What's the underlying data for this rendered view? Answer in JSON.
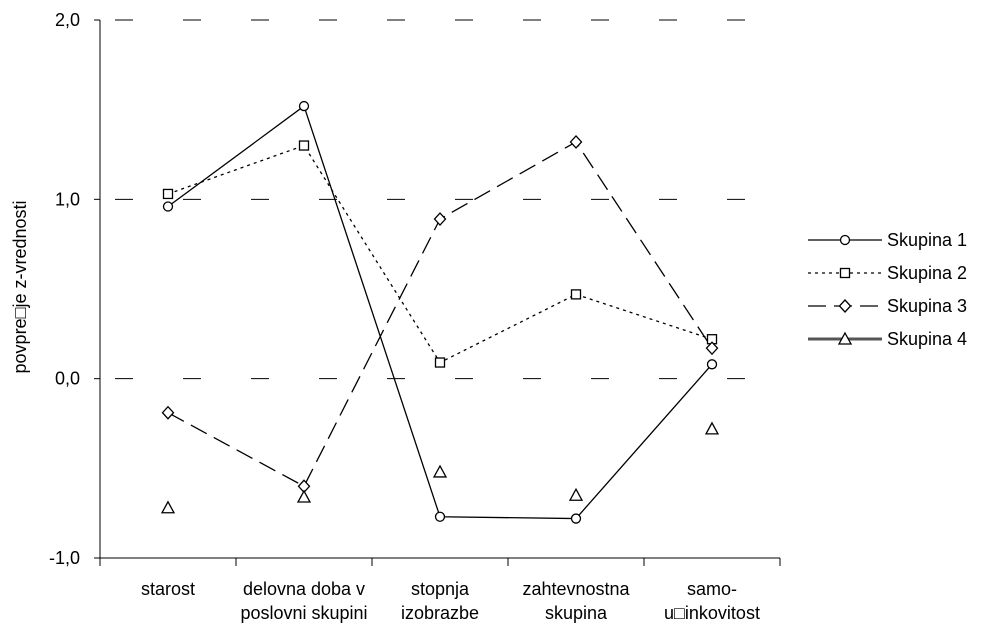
{
  "chart_data": {
    "type": "line",
    "title": "",
    "ylabel": "povpre□je z-vrednosti",
    "xlabel": "",
    "ylim": [
      -1.0,
      2.0
    ],
    "yticks": [
      "2,0",
      "1,0",
      "0,0",
      "-1,0"
    ],
    "ytick_values": [
      2.0,
      1.0,
      0.0,
      -1.0
    ],
    "grid": "dashed horizontal",
    "legend_position": "right",
    "categories": [
      [
        "starost"
      ],
      [
        "delovna doba v",
        "poslovni skupini"
      ],
      [
        "stopnja",
        "izobrazbe"
      ],
      [
        "zahtevnostna",
        "skupina"
      ],
      [
        "samo-",
        "u□inkovitost"
      ]
    ],
    "series": [
      {
        "name": "Skupina 1",
        "marker": "circle",
        "line": "solid",
        "color": "#000000",
        "values": [
          0.96,
          1.52,
          -0.77,
          -0.78,
          0.08
        ]
      },
      {
        "name": "Skupina 2",
        "marker": "square",
        "line": "dotted",
        "color": "#000000",
        "values": [
          1.03,
          1.3,
          0.09,
          0.47,
          0.22
        ]
      },
      {
        "name": "Skupina 3",
        "marker": "diamond",
        "line": "dashed",
        "color": "#000000",
        "values": [
          -0.19,
          -0.6,
          0.89,
          1.32,
          0.17
        ]
      },
      {
        "name": "Skupina 4",
        "marker": "triangle",
        "line": "none",
        "color": "#000000",
        "values": [
          -0.72,
          -0.66,
          -0.52,
          -0.65,
          -0.28
        ]
      }
    ]
  }
}
